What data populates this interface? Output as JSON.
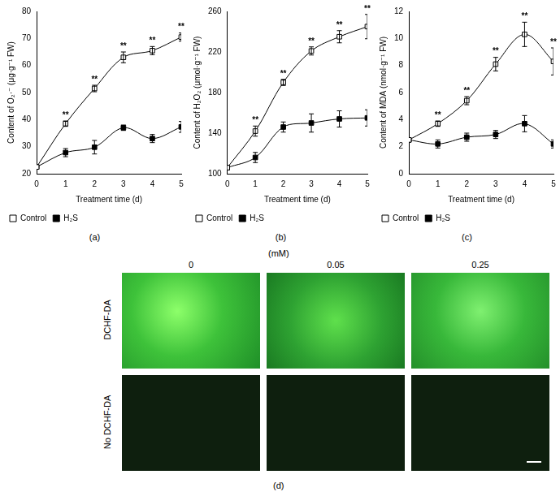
{
  "chart_data": [
    {
      "type": "line",
      "panel": "(a)",
      "x_label": "Treatment time (d)",
      "y_label": "Content of O₂·⁻ (μg·g⁻¹ FW)",
      "x": [
        0,
        1,
        2,
        3,
        4,
        5
      ],
      "xlim": [
        0,
        5
      ],
      "xticks": [
        0,
        1,
        2,
        3,
        4,
        5
      ],
      "ylim": [
        20,
        80
      ],
      "yticks": [
        20,
        30,
        40,
        50,
        60,
        70,
        80
      ],
      "grid": false,
      "legend": "bottom",
      "series": [
        {
          "name": "Control",
          "color": "#000000",
          "marker": "square_open",
          "line_style": "solid",
          "values": [
            22.5,
            38.5,
            51.5,
            63,
            65.5,
            70.5
          ],
          "errors": [
            0,
            1,
            1.2,
            2,
            1.5,
            1.5
          ]
        },
        {
          "name": "H₂S",
          "color": "#000000",
          "marker": "square",
          "line_style": "solid",
          "values": [
            22.5,
            27.8,
            29.8,
            37,
            33,
            37.3
          ],
          "errors": [
            0,
            1.5,
            2.5,
            1,
            1.5,
            2
          ]
        }
      ],
      "significance": {
        "series": "Control",
        "x": [
          1,
          2,
          3,
          4,
          5
        ],
        "text": "**"
      }
    },
    {
      "type": "line",
      "panel": "(b)",
      "x_label": "Treatment time (d)",
      "y_label": "Content of H₂O₂ (μmol·g⁻¹ FW)",
      "x": [
        0,
        1,
        2,
        3,
        4,
        5
      ],
      "xlim": [
        0,
        5
      ],
      "xticks": [
        0,
        1,
        2,
        3,
        4,
        5
      ],
      "ylim": [
        100,
        260
      ],
      "yticks": [
        100,
        140,
        180,
        220,
        260
      ],
      "grid": false,
      "legend": "bottom",
      "series": [
        {
          "name": "Control",
          "color": "#000000",
          "marker": "square_open",
          "line_style": "solid",
          "values": [
            106,
            142,
            190,
            221,
            235,
            245
          ],
          "errors": [
            0,
            5,
            3,
            4,
            6,
            12
          ]
        },
        {
          "name": "H₂S",
          "color": "#000000",
          "marker": "square",
          "line_style": "solid",
          "values": [
            106,
            116,
            146,
            150,
            154,
            155
          ],
          "errors": [
            0,
            5,
            5,
            9,
            8,
            8
          ]
        }
      ],
      "significance": {
        "series": "Control",
        "x": [
          1,
          2,
          3,
          4,
          5
        ],
        "text": "**"
      }
    },
    {
      "type": "line",
      "panel": "(c)",
      "x_label": "Treatment time (d)",
      "y_label": "Content of MDA (nmol·g⁻¹ FW)",
      "x": [
        0,
        1,
        2,
        3,
        4,
        5
      ],
      "xlim": [
        0,
        5
      ],
      "xticks": [
        0,
        1,
        2,
        3,
        4,
        5
      ],
      "ylim": [
        0,
        12
      ],
      "yticks": [
        0,
        2,
        4,
        6,
        8,
        10,
        12
      ],
      "grid": false,
      "legend": "bottom",
      "series": [
        {
          "name": "Control",
          "color": "#000000",
          "marker": "square_open",
          "line_style": "solid",
          "values": [
            2.5,
            3.7,
            5.4,
            8.1,
            10.3,
            8.3
          ],
          "errors": [
            0,
            0.2,
            0.3,
            0.5,
            0.9,
            1.0
          ]
        },
        {
          "name": "H₂S",
          "color": "#000000",
          "marker": "square",
          "line_style": "solid",
          "values": [
            2.5,
            2.2,
            2.7,
            2.9,
            3.7,
            2.2
          ],
          "errors": [
            0,
            0.3,
            0.3,
            0.3,
            0.6,
            0.3
          ]
        }
      ],
      "significance": {
        "series": "Control",
        "x": [
          1,
          2,
          3,
          4,
          5
        ],
        "text": "**"
      }
    }
  ],
  "panel_d": {
    "label": "(d)",
    "unit": "(mM)",
    "columns": [
      "0",
      "0.05",
      "0.25"
    ],
    "rows": [
      "DCHF-DA",
      "No DCHF-DA"
    ]
  }
}
